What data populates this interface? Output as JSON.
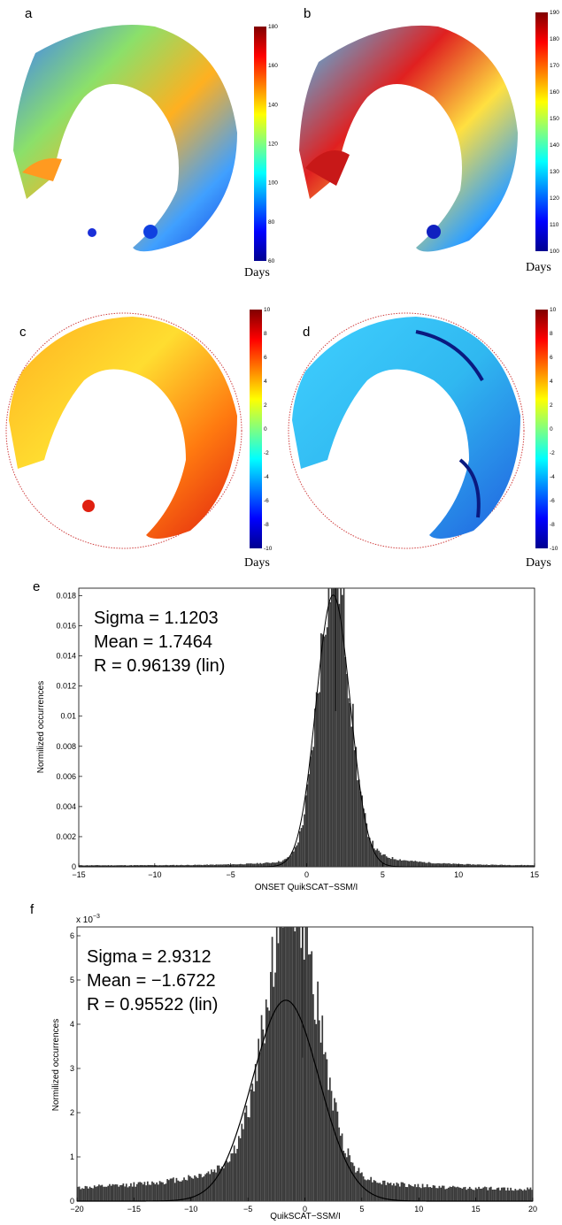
{
  "chart_data": [
    {
      "type": "heatmap",
      "panel": "a",
      "colorbar_label": "Days",
      "colorbar_range": [
        60,
        180
      ],
      "colorbar_ticks": [
        "180",
        "160",
        "140",
        "120",
        "100",
        "80",
        "60"
      ]
    },
    {
      "type": "heatmap",
      "panel": "b",
      "colorbar_label": "Days",
      "colorbar_range": [
        100,
        190
      ],
      "colorbar_ticks": [
        "190",
        "180",
        "170",
        "160",
        "150",
        "140",
        "130",
        "120",
        "110",
        "100"
      ]
    },
    {
      "type": "heatmap",
      "panel": "c",
      "colorbar_label": "Days",
      "colorbar_range": [
        -10,
        10
      ],
      "colorbar_ticks": [
        "10",
        "8",
        "6",
        "4",
        "2",
        "0",
        "-2",
        "-4",
        "-6",
        "-8",
        "-10"
      ]
    },
    {
      "type": "heatmap",
      "panel": "d",
      "colorbar_label": "Days",
      "colorbar_range": [
        -10,
        10
      ],
      "colorbar_ticks": [
        "10",
        "8",
        "6",
        "4",
        "2",
        "0",
        "-2",
        "-4",
        "-6",
        "-8",
        "-10"
      ]
    },
    {
      "type": "bar",
      "panel": "e",
      "xlabel": "ONSET QuikSCAT−SSM/I",
      "ylabel": "Normilized occurrences",
      "xlim": [
        -15,
        15
      ],
      "ylim": [
        0,
        0.0185
      ],
      "xticks": [
        "−15",
        "−10",
        "−5",
        "0",
        "5",
        "10",
        "15"
      ],
      "yticks": [
        "0",
        "0.002",
        "0.004",
        "0.006",
        "0.008",
        "0.01",
        "0.012",
        "0.014",
        "0.016",
        "0.018"
      ],
      "stats": [
        "Sigma = 1.1203",
        "Mean = 1.7464",
        "R = 0.96139  (lin)"
      ],
      "fit": {
        "mean": 1.7464,
        "sigma": 1.1203
      },
      "histogram": {
        "peak_x": 1.75,
        "peak_y": 0.0188,
        "sigma_core": 1.0,
        "right_tail_scale": 0.0022,
        "left_tail_scale": 0.0009,
        "floor": 0.0001
      },
      "peak_line_x": 1.9
    },
    {
      "type": "bar",
      "panel": "f",
      "xlabel": "QuikSCAT−SSM/I",
      "ylabel": "Normilized occurrences",
      "xlim": [
        -20,
        20
      ],
      "ylim": [
        0,
        6.2
      ],
      "y_multiplier": "x 10",
      "y_multiplier_exp": "−3",
      "xticks": [
        "−20",
        "−15",
        "−10",
        "−5",
        "0",
        "5",
        "10",
        "15",
        "20"
      ],
      "yticks": [
        "0",
        "1",
        "2",
        "3",
        "4",
        "5",
        "6"
      ],
      "stats": [
        "Sigma = 2.9312",
        "Mean = −1.6722",
        "R = 0.95522  (lin)"
      ],
      "fit": {
        "mean": -1.6722,
        "sigma": 2.9312
      },
      "histogram": {
        "peak_x": -1.0,
        "peak_y": 5.9,
        "sigma_core": 2.2,
        "left_tail_scale": 1.3,
        "right_tail_scale": 0.6,
        "floor": 0.25
      },
      "peak_line_x": -0.2
    }
  ]
}
